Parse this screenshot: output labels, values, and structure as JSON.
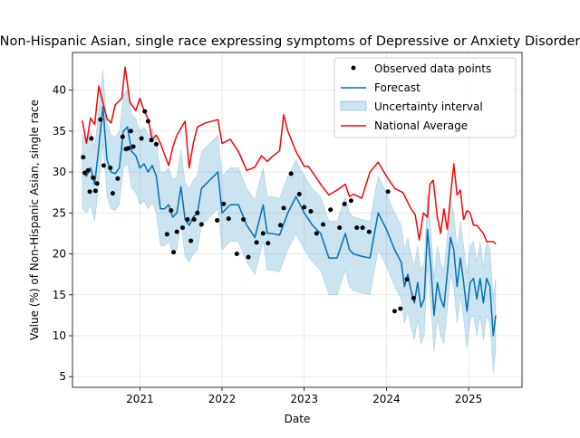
{
  "chart_data": {
    "type": "line",
    "title": "Non-Hispanic Asian, single race expressing symptoms of Depressive or Anxiety Disorder",
    "xlabel": "Date",
    "ylabel": "Value (%) of Non-Hispanic Asian, single race",
    "xlim": [
      2020.18,
      2025.65
    ],
    "ylim": [
      3.7,
      44.6
    ],
    "x_ticks": [
      2021,
      2022,
      2023,
      2024,
      2025
    ],
    "x_tick_labels": [
      "2021",
      "2022",
      "2023",
      "2024",
      "2025"
    ],
    "y_ticks": [
      5,
      10,
      15,
      20,
      25,
      30,
      35,
      40
    ],
    "y_tick_labels": [
      "5",
      "10",
      "15",
      "20",
      "25",
      "30",
      "35",
      "40"
    ],
    "grid": true,
    "legend": {
      "position": "top-right",
      "entries": [
        "Observed data points",
        "Forecast",
        "Uncertainty interval",
        "National Average"
      ]
    },
    "colors": {
      "observed": "#000000",
      "forecast": "#0072B2",
      "band": "#0072B2",
      "national": "#ff0000",
      "grid": "#e5e5e5"
    },
    "series": [
      {
        "name": "Observed data points",
        "kind": "scatter",
        "x": [
          2020.31,
          2020.33,
          2020.37,
          2020.39,
          2020.41,
          2020.43,
          2020.46,
          2020.48,
          2020.52,
          2020.56,
          2020.64,
          2020.67,
          2020.73,
          2020.79,
          2020.83,
          2020.86,
          2020.89,
          2020.92,
          2021.02,
          2021.06,
          2021.1,
          2021.14,
          2021.2,
          2021.33,
          2021.38,
          2021.41,
          2021.45,
          2021.52,
          2021.58,
          2021.62,
          2021.66,
          2021.7,
          2021.75,
          2021.94,
          2022.02,
          2022.08,
          2022.18,
          2022.26,
          2022.32,
          2022.42,
          2022.5,
          2022.56,
          2022.71,
          2022.75,
          2022.84,
          2022.94,
          2023.0,
          2023.08,
          2023.15,
          2023.23,
          2023.32,
          2023.43,
          2023.49,
          2023.57,
          2023.64,
          2023.71,
          2023.79,
          2024.02,
          2024.1,
          2024.17,
          2024.25,
          2024.33
        ],
        "y": [
          31.8,
          29.9,
          30.2,
          27.6,
          34.1,
          29.3,
          27.7,
          28.6,
          36.4,
          30.8,
          30.5,
          27.4,
          29.2,
          34.3,
          32.8,
          32.9,
          35.0,
          33.1,
          34.1,
          37.4,
          36.2,
          33.9,
          33.4,
          22.4,
          25.3,
          20.2,
          22.7,
          23.2,
          24.2,
          21.6,
          24.2,
          25.0,
          23.6,
          24.1,
          26.1,
          24.3,
          20.0,
          24.2,
          19.6,
          21.4,
          22.5,
          21.3,
          23.5,
          25.6,
          29.8,
          27.3,
          25.7,
          25.2,
          22.5,
          23.6,
          25.4,
          23.2,
          26.1,
          26.5,
          23.2,
          23.2,
          22.7,
          27.6,
          13.0,
          13.3,
          16.9,
          14.6
        ]
      },
      {
        "name": "Forecast",
        "kind": "line",
        "x": [
          2020.3,
          2020.35,
          2020.4,
          2020.45,
          2020.5,
          2020.55,
          2020.6,
          2020.65,
          2020.7,
          2020.75,
          2020.8,
          2020.85,
          2020.9,
          2020.95,
          2021.0,
          2021.05,
          2021.1,
          2021.15,
          2021.2,
          2021.25,
          2021.3,
          2021.35,
          2021.4,
          2021.45,
          2021.5,
          2021.55,
          2021.6,
          2021.65,
          2021.7,
          2021.75,
          2021.8,
          2021.85,
          2021.9,
          2021.95,
          2022.0,
          2022.1,
          2022.2,
          2022.3,
          2022.4,
          2022.5,
          2022.55,
          2022.6,
          2022.7,
          2022.8,
          2022.85,
          2022.9,
          2023.0,
          2023.1,
          2023.2,
          2023.3,
          2023.4,
          2023.5,
          2023.55,
          2023.6,
          2023.7,
          2023.8,
          2023.9,
          2024.0,
          2024.1,
          2024.18,
          2024.22,
          2024.26,
          2024.3,
          2024.34,
          2024.38,
          2024.42,
          2024.46,
          2024.5,
          2024.54,
          2024.58,
          2024.62,
          2024.66,
          2024.7,
          2024.74,
          2024.78,
          2024.82,
          2024.86,
          2024.9,
          2024.94,
          2024.98,
          2025.02,
          2025.06,
          2025.1,
          2025.14,
          2025.18,
          2025.22,
          2025.26,
          2025.3,
          2025.33
        ],
        "y": [
          30.0,
          29.5,
          30.5,
          28.5,
          33.0,
          38.0,
          31.5,
          30.0,
          29.8,
          30.5,
          35.0,
          35.5,
          32.5,
          32.0,
          30.5,
          31.0,
          30.0,
          30.8,
          29.5,
          25.5,
          25.5,
          26.0,
          24.5,
          25.0,
          28.2,
          24.2,
          23.5,
          24.5,
          25.0,
          28.0,
          28.5,
          29.0,
          29.5,
          30.0,
          25.0,
          26.0,
          26.0,
          23.5,
          22.0,
          26.0,
          22.5,
          22.5,
          22.3,
          25.0,
          26.0,
          27.0,
          25.0,
          23.5,
          22.5,
          19.5,
          19.5,
          22.5,
          20.5,
          20.0,
          19.7,
          19.5,
          25.0,
          23.0,
          20.5,
          19.0,
          16.0,
          17.5,
          15.5,
          14.0,
          16.5,
          13.5,
          14.5,
          23.0,
          18.5,
          12.5,
          16.5,
          14.5,
          13.5,
          17.5,
          22.0,
          20.5,
          16.0,
          19.5,
          16.5,
          13.0,
          16.5,
          17.0,
          14.5,
          17.0,
          14.0,
          17.0,
          16.0,
          10.0,
          12.5
        ]
      },
      {
        "name": "Uncertainty interval",
        "kind": "band",
        "x": [
          2020.3,
          2020.35,
          2020.4,
          2020.45,
          2020.5,
          2020.55,
          2020.6,
          2020.65,
          2020.7,
          2020.75,
          2020.8,
          2020.85,
          2020.9,
          2020.95,
          2021.0,
          2021.05,
          2021.1,
          2021.15,
          2021.2,
          2021.25,
          2021.3,
          2021.35,
          2021.4,
          2021.45,
          2021.5,
          2021.55,
          2021.6,
          2021.65,
          2021.7,
          2021.75,
          2021.8,
          2021.85,
          2021.9,
          2021.95,
          2022.0,
          2022.1,
          2022.2,
          2022.3,
          2022.4,
          2022.5,
          2022.55,
          2022.6,
          2022.7,
          2022.8,
          2022.85,
          2022.9,
          2023.0,
          2023.1,
          2023.2,
          2023.3,
          2023.4,
          2023.5,
          2023.55,
          2023.6,
          2023.7,
          2023.8,
          2023.9,
          2024.0,
          2024.1,
          2024.18,
          2024.22,
          2024.26,
          2024.3,
          2024.34,
          2024.38,
          2024.42,
          2024.46,
          2024.5,
          2024.54,
          2024.58,
          2024.62,
          2024.66,
          2024.7,
          2024.74,
          2024.78,
          2024.82,
          2024.86,
          2024.9,
          2024.94,
          2024.98,
          2025.02,
          2025.06,
          2025.1,
          2025.14,
          2025.18,
          2025.22,
          2025.26,
          2025.3,
          2025.33
        ],
        "lower": [
          25.5,
          25.0,
          26.0,
          24.0,
          28.5,
          33.5,
          27.0,
          25.5,
          25.3,
          26.0,
          30.5,
          31.0,
          28.0,
          27.5,
          26.0,
          26.5,
          25.5,
          26.3,
          25.0,
          21.0,
          21.0,
          21.5,
          20.0,
          20.5,
          23.7,
          19.7,
          19.0,
          20.0,
          20.5,
          23.5,
          24.0,
          24.5,
          25.0,
          25.5,
          20.5,
          21.5,
          21.5,
          19.0,
          17.5,
          21.5,
          18.0,
          18.0,
          17.8,
          20.5,
          21.5,
          22.5,
          20.5,
          19.0,
          18.0,
          15.0,
          15.0,
          18.0,
          16.0,
          15.5,
          15.2,
          15.0,
          20.5,
          18.5,
          16.0,
          14.5,
          11.5,
          13.0,
          11.0,
          9.5,
          12.0,
          9.0,
          10.0,
          18.5,
          14.0,
          8.0,
          12.0,
          10.0,
          9.0,
          13.0,
          17.5,
          16.0,
          11.5,
          15.0,
          12.0,
          8.5,
          12.0,
          12.5,
          10.0,
          12.5,
          9.5,
          12.5,
          11.5,
          5.5,
          8.0
        ],
        "upper": [
          34.5,
          34.0,
          35.0,
          33.0,
          37.5,
          42.5,
          36.0,
          34.5,
          34.3,
          35.0,
          39.5,
          40.0,
          37.0,
          36.5,
          35.0,
          35.5,
          34.5,
          35.3,
          34.0,
          30.0,
          30.0,
          30.5,
          29.0,
          29.5,
          32.7,
          28.7,
          28.0,
          29.0,
          29.5,
          32.5,
          33.0,
          33.5,
          34.0,
          34.5,
          29.5,
          30.5,
          30.5,
          28.0,
          26.5,
          30.5,
          27.0,
          27.0,
          26.8,
          29.5,
          30.5,
          31.5,
          29.5,
          28.0,
          27.0,
          24.0,
          24.0,
          27.0,
          25.0,
          24.5,
          24.2,
          24.0,
          29.5,
          27.5,
          25.0,
          23.5,
          20.5,
          22.0,
          20.0,
          18.5,
          21.0,
          18.0,
          19.0,
          27.5,
          23.0,
          17.0,
          21.0,
          19.0,
          18.0,
          22.0,
          26.5,
          25.0,
          20.5,
          24.0,
          21.0,
          17.5,
          21.0,
          21.5,
          19.0,
          21.5,
          18.5,
          21.5,
          20.5,
          14.5,
          17.0
        ]
      },
      {
        "name": "National Average",
        "kind": "line",
        "x": [
          2020.3,
          2020.35,
          2020.4,
          2020.45,
          2020.5,
          2020.55,
          2020.6,
          2020.65,
          2020.7,
          2020.78,
          2020.82,
          2020.88,
          2020.95,
          2021.0,
          2021.05,
          2021.1,
          2021.15,
          2021.2,
          2021.25,
          2021.35,
          2021.4,
          2021.45,
          2021.55,
          2021.6,
          2021.65,
          2021.7,
          2021.8,
          2021.95,
          2022.0,
          2022.1,
          2022.2,
          2022.3,
          2022.4,
          2022.48,
          2022.55,
          2022.6,
          2022.7,
          2022.75,
          2022.8,
          2022.9,
          2023.0,
          2023.05,
          2023.1,
          2023.2,
          2023.3,
          2023.4,
          2023.5,
          2023.55,
          2023.6,
          2023.7,
          2023.8,
          2023.9,
          2024.0,
          2024.1,
          2024.2,
          2024.3,
          2024.35,
          2024.4,
          2024.45,
          2024.5,
          2024.53,
          2024.57,
          2024.62,
          2024.66,
          2024.7,
          2024.74,
          2024.78,
          2024.82,
          2024.86,
          2024.9,
          2024.94,
          2024.98,
          2025.02,
          2025.06,
          2025.1,
          2025.14,
          2025.18,
          2025.22,
          2025.26,
          2025.3,
          2025.33
        ],
        "y": [
          36.3,
          33.5,
          36.6,
          35.8,
          40.5,
          38.5,
          36.5,
          36.0,
          38.2,
          39.0,
          42.8,
          38.5,
          37.5,
          39.0,
          37.5,
          36.5,
          34.0,
          34.5,
          33.5,
          30.8,
          33.0,
          34.5,
          36.2,
          30.5,
          33.5,
          35.5,
          36.0,
          36.4,
          33.5,
          34.0,
          32.5,
          30.2,
          30.6,
          32.0,
          31.3,
          31.8,
          32.6,
          37.0,
          35.0,
          32.5,
          30.7,
          30.7,
          30.0,
          28.5,
          27.2,
          27.8,
          28.5,
          27.0,
          27.3,
          26.8,
          30.0,
          31.2,
          29.5,
          28.0,
          27.5,
          25.5,
          24.8,
          21.7,
          25.0,
          24.5,
          28.5,
          29.0,
          24.5,
          22.5,
          25.5,
          23.0,
          27.0,
          31.0,
          27.2,
          27.8,
          24.2,
          25.3,
          25.0,
          23.5,
          23.5,
          23.0,
          22.5,
          21.5,
          21.5,
          21.5,
          21.2
        ]
      }
    ]
  }
}
